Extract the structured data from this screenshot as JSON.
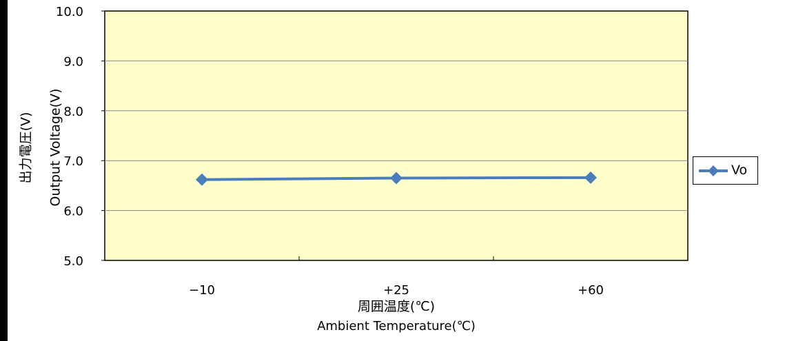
{
  "chart_data": {
    "type": "line",
    "categories": [
      "−10",
      "+25",
      "+60"
    ],
    "series": [
      {
        "name": "Vo",
        "values": [
          6.62,
          6.65,
          6.66
        ],
        "color": "#4a7ebb",
        "marker": "diamond"
      }
    ],
    "ylabel_ja": "出力電圧(V)",
    "ylabel_en": "Output  Voltage(V)",
    "xlabel_ja": "周囲温度(℃)",
    "xlabel_en": "Ambient Temperature(℃)",
    "ylim": [
      5.0,
      10.0
    ],
    "yticks": [
      "5.0",
      "6.0",
      "7.0",
      "8.0",
      "9.0",
      "10.0"
    ],
    "grid": true,
    "plot_background": "#ffffcc",
    "legend_position": "right"
  }
}
